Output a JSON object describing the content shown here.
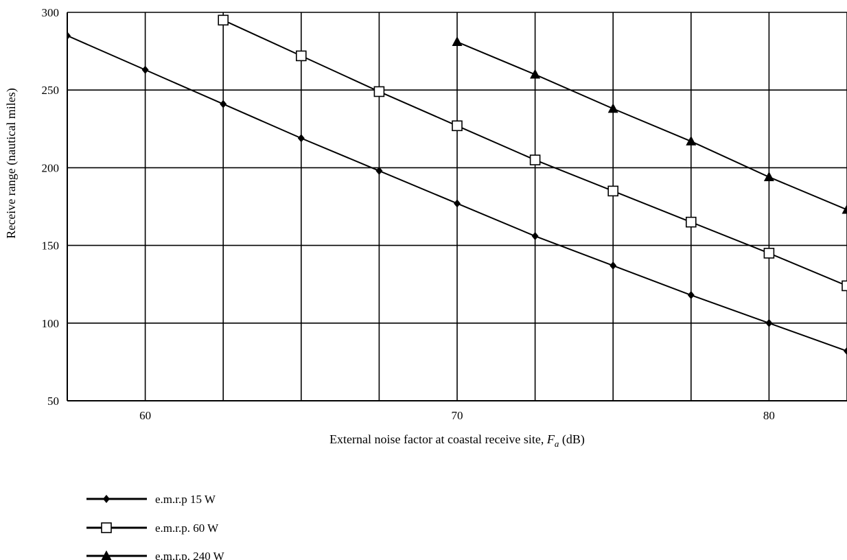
{
  "chart_data": {
    "type": "line",
    "title": "",
    "xlabel": "External noise factor at coastal receive site, ",
    "xlabel_var": "F",
    "xlabel_sub": "a",
    "xlabel_unit": " (dB)",
    "ylabel": "Receive range (nautical miles)",
    "xlim": [
      57.5,
      82.5
    ],
    "ylim": [
      50,
      300
    ],
    "x_ticks": [
      60,
      70,
      80
    ],
    "y_ticks": [
      50,
      100,
      150,
      200,
      250,
      300
    ],
    "x_tick_labels": [
      "60",
      "70",
      "80"
    ],
    "y_tick_labels": [
      "50",
      "100",
      "150",
      "200",
      "250",
      "300"
    ],
    "grid": true,
    "x_grid_step": 2.5,
    "legend_position": "bottom-left",
    "series": [
      {
        "name": "e.m.r.p 15 W",
        "marker": "diamond",
        "x": [
          57.5,
          60,
          62.5,
          65,
          67.5,
          70,
          72.5,
          75,
          77.5,
          80,
          82.5
        ],
        "y": [
          285,
          263,
          241,
          219,
          198,
          177,
          156,
          137,
          118,
          100,
          82
        ]
      },
      {
        "name": "e.m.r.p. 60 W",
        "marker": "square",
        "x": [
          62.5,
          65,
          67.5,
          70,
          72.5,
          75,
          77.5,
          80,
          82.5
        ],
        "y": [
          295,
          272,
          249,
          227,
          205,
          185,
          165,
          145,
          124
        ]
      },
      {
        "name": "e.m.r.p. 240 W",
        "marker": "triangle",
        "x": [
          70,
          72.5,
          75,
          77.5,
          80,
          82.5
        ],
        "y": [
          281,
          260,
          238,
          217,
          194,
          173
        ]
      }
    ]
  }
}
